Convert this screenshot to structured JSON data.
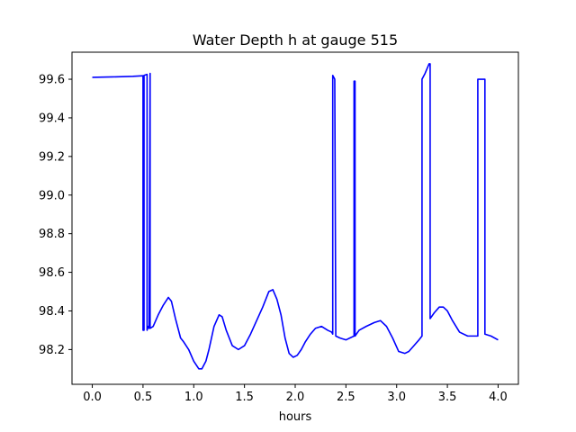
{
  "chart_data": {
    "type": "line",
    "title": "Water Depth h at gauge 515",
    "xlabel": "hours",
    "ylabel": "",
    "xlim": [
      -0.2,
      4.2
    ],
    "ylim": [
      98.02,
      99.74
    ],
    "x_ticks": [
      0.0,
      0.5,
      1.0,
      1.5,
      2.0,
      2.5,
      3.0,
      3.5,
      4.0
    ],
    "x_tick_labels": [
      "0.0",
      "0.5",
      "1.0",
      "1.5",
      "2.0",
      "2.5",
      "3.0",
      "3.5",
      "4.0"
    ],
    "y_ticks": [
      98.2,
      98.4,
      98.6,
      98.8,
      99.0,
      99.2,
      99.4,
      99.6
    ],
    "y_tick_labels": [
      "98.2",
      "98.4",
      "98.6",
      "98.8",
      "99.0",
      "99.2",
      "99.4",
      "99.6"
    ],
    "grid": false,
    "series": [
      {
        "color": "#0000ff",
        "x": [
          0.0,
          0.2,
          0.4,
          0.5,
          0.5,
          0.51,
          0.51,
          0.54,
          0.54,
          0.55,
          0.56,
          0.57,
          0.57,
          0.6,
          0.65,
          0.7,
          0.75,
          0.78,
          0.82,
          0.87,
          0.9,
          0.95,
          1.0,
          1.05,
          1.08,
          1.12,
          1.15,
          1.2,
          1.25,
          1.28,
          1.32,
          1.38,
          1.44,
          1.5,
          1.56,
          1.62,
          1.68,
          1.74,
          1.78,
          1.82,
          1.86,
          1.9,
          1.94,
          1.98,
          2.02,
          2.06,
          2.1,
          2.15,
          2.2,
          2.26,
          2.32,
          2.36,
          2.37,
          2.37,
          2.38,
          2.39,
          2.4,
          2.4,
          2.44,
          2.5,
          2.54,
          2.58,
          2.58,
          2.59,
          2.59,
          2.63,
          2.7,
          2.78,
          2.84,
          2.9,
          2.96,
          3.02,
          3.08,
          3.12,
          3.17,
          3.22,
          3.25,
          3.25,
          3.28,
          3.32,
          3.33,
          3.33,
          3.37,
          3.42,
          3.46,
          3.5,
          3.55,
          3.62,
          3.7,
          3.78,
          3.8,
          3.8,
          3.82,
          3.86,
          3.87,
          3.87,
          3.93,
          4.0
        ],
        "y": [
          99.61,
          99.612,
          99.615,
          99.618,
          98.3,
          98.3,
          99.62,
          99.625,
          98.3,
          98.32,
          98.31,
          99.63,
          98.31,
          98.32,
          98.38,
          98.43,
          98.47,
          98.45,
          98.36,
          98.26,
          98.24,
          98.2,
          98.14,
          98.1,
          98.1,
          98.14,
          98.2,
          98.32,
          98.38,
          98.37,
          98.3,
          98.22,
          98.2,
          98.22,
          98.28,
          98.35,
          98.42,
          98.5,
          98.51,
          98.46,
          98.38,
          98.26,
          98.18,
          98.16,
          98.17,
          98.2,
          98.24,
          98.28,
          98.31,
          98.32,
          98.3,
          98.29,
          98.28,
          99.62,
          99.61,
          99.6,
          98.27,
          98.27,
          98.26,
          98.25,
          98.26,
          98.27,
          99.59,
          99.59,
          98.27,
          98.3,
          98.32,
          98.34,
          98.35,
          98.32,
          98.26,
          98.19,
          98.18,
          98.19,
          98.22,
          98.25,
          98.27,
          99.6,
          99.63,
          99.68,
          99.68,
          98.36,
          98.39,
          98.42,
          98.42,
          98.4,
          98.35,
          98.29,
          98.27,
          98.27,
          98.27,
          99.6,
          99.6,
          99.6,
          99.6,
          98.28,
          98.27,
          98.25
        ]
      }
    ]
  }
}
